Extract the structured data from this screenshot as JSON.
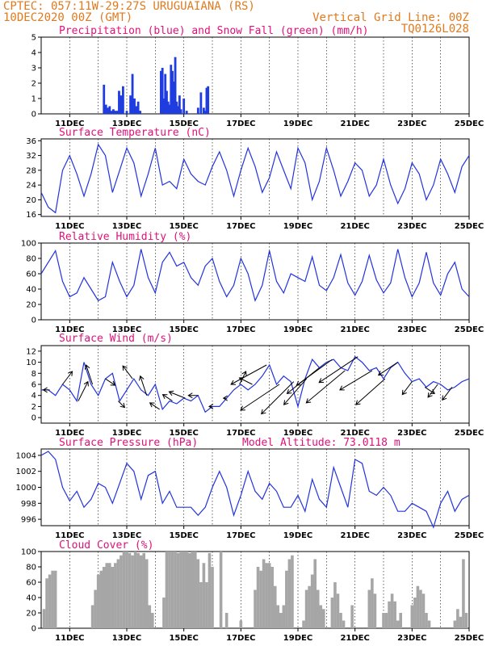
{
  "header": {
    "line1_left": "CPTEC:  057:11W-29:27S  URUGUAIANA (RS)",
    "line2_left": "10DEC2020 00Z (GMT)",
    "line2_right": "Vertical Grid Line: 00Z",
    "line3_right": "TQ0126L028"
  },
  "colors": {
    "header": "#e07a1f",
    "panel_title": "#e0107a",
    "line": "#2233dd",
    "precip": "#1f3cdf",
    "snow": "#22bb22",
    "cloud": "#a6a6a6"
  },
  "x_ticks": [
    "11DEC",
    "13DEC",
    "15DEC",
    "17DEC",
    "19DEC",
    "21DEC",
    "23DEC",
    "25DEC"
  ],
  "chart_data": [
    {
      "id": "precip",
      "type": "bar",
      "title": "Precipitation (blue) and Snow Fall (green) (mm/h)",
      "x_unit": "days since 10DEC2020 00Z",
      "ylim": [
        0,
        5
      ],
      "yticks": [
        0,
        1,
        2,
        3,
        4,
        5
      ],
      "grid": true,
      "series": [
        {
          "name": "Precipitation",
          "x": [
            2.2,
            2.27,
            2.33,
            2.4,
            2.47,
            2.53,
            2.6,
            2.67,
            2.73,
            2.8,
            2.87,
            3.0,
            3.13,
            3.2,
            3.27,
            3.33,
            3.4,
            3.47,
            4.2,
            4.25,
            4.3,
            4.35,
            4.4,
            4.45,
            4.5,
            4.55,
            4.6,
            4.65,
            4.7,
            4.75,
            4.8,
            4.85,
            4.9,
            5.0,
            5.1,
            5.5,
            5.6,
            5.7,
            5.75,
            5.8,
            5.85
          ],
          "values": [
            1.9,
            0.6,
            0.4,
            0.5,
            0.2,
            0.3,
            0.2,
            0.2,
            1.5,
            1.2,
            1.8,
            0.2,
            1.2,
            2.6,
            1.0,
            0.5,
            0.8,
            0.2,
            2.8,
            3.0,
            1.0,
            2.6,
            1.5,
            0.8,
            0.6,
            3.2,
            2.8,
            2.1,
            3.7,
            0.8,
            0.5,
            1.2,
            0.3,
            1.0,
            0.2,
            0.4,
            1.4,
            0.4,
            0.2,
            1.7,
            1.8
          ]
        },
        {
          "name": "Snow Fall",
          "x": [],
          "values": []
        }
      ]
    },
    {
      "id": "temp",
      "type": "line",
      "title": "Surface Temperature (nC)",
      "ylim": [
        15.5,
        36.5
      ],
      "yticks": [
        16,
        20,
        24,
        28,
        32,
        36
      ],
      "grid": true,
      "series": [
        {
          "name": "Temperature",
          "x": [
            0,
            0.25,
            0.5,
            0.75,
            1.0,
            1.25,
            1.5,
            1.75,
            2.0,
            2.25,
            2.5,
            2.75,
            3.0,
            3.25,
            3.5,
            3.75,
            4.0,
            4.25,
            4.5,
            4.75,
            5.0,
            5.25,
            5.5,
            5.75,
            6.0,
            6.25,
            6.5,
            6.75,
            7.0,
            7.25,
            7.5,
            7.75,
            8.0,
            8.25,
            8.5,
            8.75,
            9.0,
            9.25,
            9.5,
            9.75,
            10.0,
            10.25,
            10.5,
            10.75,
            11.0,
            11.25,
            11.5,
            11.75,
            12.0,
            12.25,
            12.5,
            12.75,
            13.0,
            13.25,
            13.5,
            13.75,
            14.0,
            14.25,
            14.5,
            14.75,
            15.0
          ],
          "values": [
            22,
            18,
            16.5,
            28,
            32,
            27,
            21,
            27,
            35,
            32,
            22,
            28,
            34,
            30,
            21,
            27,
            34,
            24,
            25,
            23,
            31,
            27,
            25,
            24,
            29,
            33,
            28,
            21,
            28,
            34,
            29,
            22,
            26,
            33,
            28,
            23,
            34,
            30,
            20,
            25,
            34,
            28,
            21,
            25,
            30,
            28,
            21,
            24,
            31,
            24,
            19,
            23,
            30,
            27,
            20,
            24,
            31,
            27,
            22,
            29,
            32
          ]
        }
      ]
    },
    {
      "id": "rh",
      "type": "line",
      "title": "Relative Humidity (%)",
      "ylim": [
        0,
        100
      ],
      "yticks": [
        0,
        20,
        40,
        60,
        80,
        100
      ],
      "grid": true,
      "series": [
        {
          "name": "Relative Humidity",
          "x": [
            0,
            0.25,
            0.5,
            0.75,
            1.0,
            1.25,
            1.5,
            1.75,
            2.0,
            2.25,
            2.5,
            2.75,
            3.0,
            3.25,
            3.5,
            3.75,
            4.0,
            4.25,
            4.5,
            4.75,
            5.0,
            5.25,
            5.5,
            5.75,
            6.0,
            6.25,
            6.5,
            6.75,
            7.0,
            7.25,
            7.5,
            7.75,
            8.0,
            8.25,
            8.5,
            8.75,
            9.0,
            9.25,
            9.5,
            9.75,
            10.0,
            10.25,
            10.5,
            10.75,
            11.0,
            11.25,
            11.5,
            11.75,
            12.0,
            12.25,
            12.5,
            12.75,
            13.0,
            13.25,
            13.5,
            13.75,
            14.0,
            14.25,
            14.5,
            14.75,
            15.0
          ],
          "values": [
            60,
            75,
            90,
            50,
            30,
            35,
            55,
            40,
            25,
            30,
            75,
            50,
            30,
            45,
            92,
            55,
            35,
            75,
            88,
            70,
            75,
            55,
            45,
            70,
            80,
            50,
            30,
            45,
            80,
            60,
            25,
            45,
            90,
            50,
            35,
            60,
            55,
            50,
            82,
            45,
            38,
            55,
            85,
            48,
            32,
            50,
            84,
            52,
            35,
            48,
            92,
            55,
            30,
            48,
            88,
            48,
            32,
            60,
            75,
            40,
            30
          ]
        }
      ]
    },
    {
      "id": "wind",
      "type": "line",
      "title": "Surface Wind (m/s)",
      "ylim": [
        -1,
        13
      ],
      "yticks": [
        0,
        2,
        4,
        6,
        8,
        10,
        12
      ],
      "grid": true,
      "series": [
        {
          "name": "Wind Speed",
          "x": [
            0,
            0.25,
            0.5,
            0.75,
            1.0,
            1.25,
            1.5,
            1.75,
            2.0,
            2.25,
            2.5,
            2.75,
            3.0,
            3.25,
            3.5,
            3.75,
            4.0,
            4.25,
            4.5,
            4.75,
            5.0,
            5.25,
            5.5,
            5.75,
            6.0,
            6.25,
            6.5,
            6.75,
            7.0,
            7.25,
            7.5,
            7.75,
            8.0,
            8.25,
            8.5,
            8.75,
            9.0,
            9.25,
            9.5,
            9.75,
            10.0,
            10.25,
            10.5,
            10.75,
            11.0,
            11.25,
            11.5,
            11.75,
            12.0,
            12.25,
            12.5,
            12.75,
            13.0,
            13.25,
            13.5,
            13.75,
            14.0,
            14.25,
            14.5,
            14.75,
            15.0
          ],
          "values": [
            5,
            5,
            4,
            6,
            5,
            3,
            10,
            6,
            4,
            7,
            8,
            3,
            5,
            7,
            5,
            4,
            6,
            1.5,
            3,
            2.5,
            3.5,
            3,
            4,
            1,
            2,
            2,
            3.5,
            5,
            6,
            5,
            6,
            7.5,
            9.5,
            6,
            7.5,
            6.5,
            2,
            7,
            10.5,
            9,
            10,
            10.5,
            9,
            8.5,
            11,
            10,
            8.5,
            9,
            7,
            9,
            10,
            8,
            6.5,
            7,
            5.5,
            6.5,
            6,
            5,
            5.5,
            6.5,
            7
          ]
        },
        {
          "name": "Wind Vectors",
          "x": [
            0.3,
            0.75,
            1.3,
            1.8,
            2.25,
            2.7,
            3.2,
            3.7,
            4.15,
            4.6,
            5.05,
            5.5,
            6.0,
            6.5,
            6.95,
            7.4,
            7.9,
            8.35,
            8.85,
            9.3,
            9.75,
            10.2,
            10.65,
            11.1,
            11.6,
            12.05,
            12.5,
            13.0,
            13.45,
            13.9,
            14.4
          ],
          "u": [
            -1,
            1.5,
            1.5,
            -1,
            1.5,
            1.0,
            -1.5,
            -1.0,
            -1.5,
            -1.5,
            -2.5,
            -1.5,
            -0.5,
            -0.5,
            1.0,
            -2.0,
            -5.5,
            -6.0,
            -5.0,
            -3.5,
            -5.0,
            -5.5,
            -6.0,
            -6.0,
            -5.0,
            -4.5,
            -3.0,
            -1.5,
            1.5,
            -1.5,
            -1.5
          ],
          "v": [
            0,
            2,
            3,
            3,
            -1,
            -1,
            2,
            3,
            1,
            1,
            1,
            0,
            0,
            0,
            2,
            1,
            -3,
            -4,
            -5,
            -4,
            -4,
            -4,
            -5,
            -4,
            -3,
            -4,
            -2,
            -2,
            -1,
            -2,
            -2
          ]
        }
      ]
    },
    {
      "id": "pressure",
      "type": "line",
      "title": "Surface Pressure (hPa)",
      "annotation": "Model Altitude: 73.0118 m",
      "ylim": [
        995.2,
        1004.8
      ],
      "yticks": [
        996,
        998,
        1000,
        1002,
        1004
      ],
      "grid": true,
      "series": [
        {
          "name": "Pressure",
          "x": [
            0,
            0.25,
            0.5,
            0.75,
            1.0,
            1.25,
            1.5,
            1.75,
            2.0,
            2.25,
            2.5,
            2.75,
            3.0,
            3.25,
            3.5,
            3.75,
            4.0,
            4.25,
            4.5,
            4.75,
            5.0,
            5.25,
            5.5,
            5.75,
            6.0,
            6.25,
            6.5,
            6.75,
            7.0,
            7.25,
            7.5,
            7.75,
            8.0,
            8.25,
            8.5,
            8.75,
            9.0,
            9.25,
            9.5,
            9.75,
            10.0,
            10.25,
            10.5,
            10.75,
            11.0,
            11.25,
            11.5,
            11.75,
            12.0,
            12.25,
            12.5,
            12.75,
            13.0,
            13.25,
            13.5,
            13.75,
            14.0,
            14.25,
            14.5,
            14.75,
            15.0
          ],
          "values": [
            1004,
            1004.5,
            1003.5,
            1000,
            998.3,
            999.5,
            997.5,
            998.5,
            1000.5,
            1000,
            998,
            1000.5,
            1003,
            1002,
            998.5,
            1001.5,
            1002,
            998,
            999.5,
            997.5,
            997.5,
            997.5,
            996.5,
            997.5,
            1000,
            1002,
            1000,
            996.5,
            999,
            1002,
            999.5,
            998.5,
            1000.5,
            999.5,
            997.5,
            997.5,
            999,
            997,
            1001,
            998.5,
            997.5,
            1002.5,
            1000,
            997.5,
            1003.5,
            1003,
            999.5,
            999,
            1000,
            999,
            997,
            997,
            998,
            997.5,
            997,
            995,
            998,
            999.5,
            997,
            998.5,
            999
          ]
        }
      ]
    },
    {
      "id": "cloud",
      "type": "bar",
      "title": "Cloud Cover (%)",
      "ylim": [
        0,
        100
      ],
      "yticks": [
        0,
        20,
        40,
        60,
        80,
        100
      ],
      "grid": true,
      "series": [
        {
          "name": "Cloud Cover",
          "x": [
            0.1,
            0.2,
            0.3,
            0.4,
            0.5,
            1.8,
            1.9,
            2.0,
            2.1,
            2.2,
            2.3,
            2.4,
            2.5,
            2.6,
            2.7,
            2.8,
            2.9,
            3.0,
            3.1,
            3.2,
            3.3,
            3.4,
            3.5,
            3.6,
            3.7,
            3.8,
            3.9,
            4.3,
            4.4,
            4.5,
            4.6,
            4.7,
            4.8,
            4.9,
            5.0,
            5.1,
            5.2,
            5.3,
            5.4,
            5.5,
            5.6,
            5.7,
            5.8,
            5.9,
            6.0,
            6.3,
            6.5,
            7.0,
            7.5,
            7.6,
            7.7,
            7.8,
            7.9,
            8.0,
            8.1,
            8.2,
            8.3,
            8.4,
            8.5,
            8.6,
            8.7,
            8.8,
            9.2,
            9.3,
            9.4,
            9.5,
            9.6,
            9.7,
            9.8,
            9.9,
            10.2,
            10.3,
            10.4,
            10.5,
            10.6,
            10.9,
            11.5,
            11.6,
            11.7,
            12.0,
            12.1,
            12.2,
            12.3,
            12.4,
            12.5,
            12.6,
            13.0,
            13.1,
            13.2,
            13.3,
            13.4,
            13.5,
            13.6,
            14.5,
            14.6,
            14.7,
            14.8,
            14.9
          ],
          "values": [
            25,
            65,
            70,
            75,
            75,
            30,
            50,
            70,
            75,
            80,
            85,
            85,
            80,
            85,
            90,
            95,
            100,
            100,
            98,
            95,
            100,
            98,
            95,
            98,
            90,
            30,
            20,
            40,
            100,
            100,
            100,
            100,
            98,
            100,
            100,
            100,
            98,
            100,
            100,
            90,
            60,
            85,
            60,
            98,
            80,
            100,
            20,
            10,
            50,
            80,
            75,
            90,
            85,
            85,
            80,
            55,
            30,
            20,
            30,
            75,
            90,
            95,
            10,
            50,
            55,
            70,
            90,
            50,
            30,
            25,
            40,
            60,
            45,
            20,
            10,
            30,
            50,
            65,
            45,
            20,
            20,
            35,
            45,
            35,
            10,
            20,
            30,
            40,
            55,
            50,
            45,
            20,
            10,
            10,
            25,
            15,
            90,
            20
          ]
        }
      ]
    }
  ]
}
